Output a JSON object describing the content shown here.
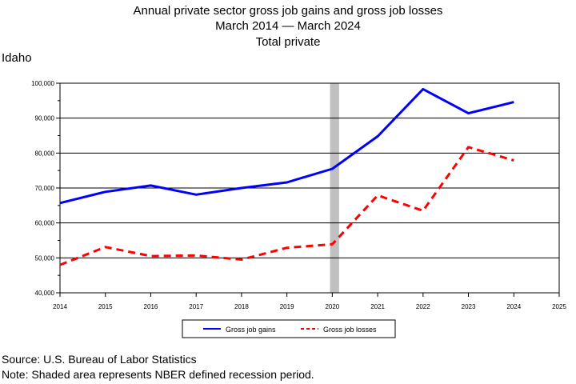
{
  "header": {
    "title": "Annual private sector gross job gains and gross job losses",
    "subtitle": "March 2014 — March 2024",
    "series_title": "Total private",
    "region": "Idaho"
  },
  "footer": {
    "source": "Source: U.S. Bureau of Labor Statistics",
    "note": "Note: Shaded area represents NBER defined recession period."
  },
  "chart_data": {
    "type": "line",
    "title": "Annual private sector gross job gains and gross job losses",
    "xlim": [
      2014,
      2025
    ],
    "ylim": [
      40000,
      100000
    ],
    "x_ticks": [
      "2014",
      "2015",
      "2016",
      "2017",
      "2018",
      "2019",
      "2020",
      "2021",
      "2022",
      "2023",
      "2024",
      "2025"
    ],
    "y_ticks": [
      "40,000",
      "50,000",
      "60,000",
      "70,000",
      "80,000",
      "90,000",
      "100,000"
    ],
    "grid": true,
    "legend_position": "bottom",
    "recession": {
      "start": 2019.95,
      "end": 2020.15,
      "color": "#c0c0c0"
    },
    "series": [
      {
        "name": "Gross job gains",
        "color": "#0000ff",
        "style": "solid",
        "x": [
          2014,
          2015,
          2016,
          2017,
          2018,
          2019,
          2020,
          2021,
          2022,
          2023,
          2024
        ],
        "values": [
          65700,
          68900,
          70700,
          68100,
          70000,
          71600,
          75500,
          84800,
          98300,
          91400,
          94600
        ]
      },
      {
        "name": "Gross job losses",
        "color": "#ff0000",
        "style": "dashed",
        "x": [
          2014,
          2015,
          2016,
          2017,
          2018,
          2019,
          2020,
          2021,
          2022,
          2023,
          2024
        ],
        "values": [
          48000,
          53100,
          50500,
          50700,
          49500,
          52900,
          53900,
          67900,
          63500,
          81700,
          77900
        ]
      }
    ]
  }
}
